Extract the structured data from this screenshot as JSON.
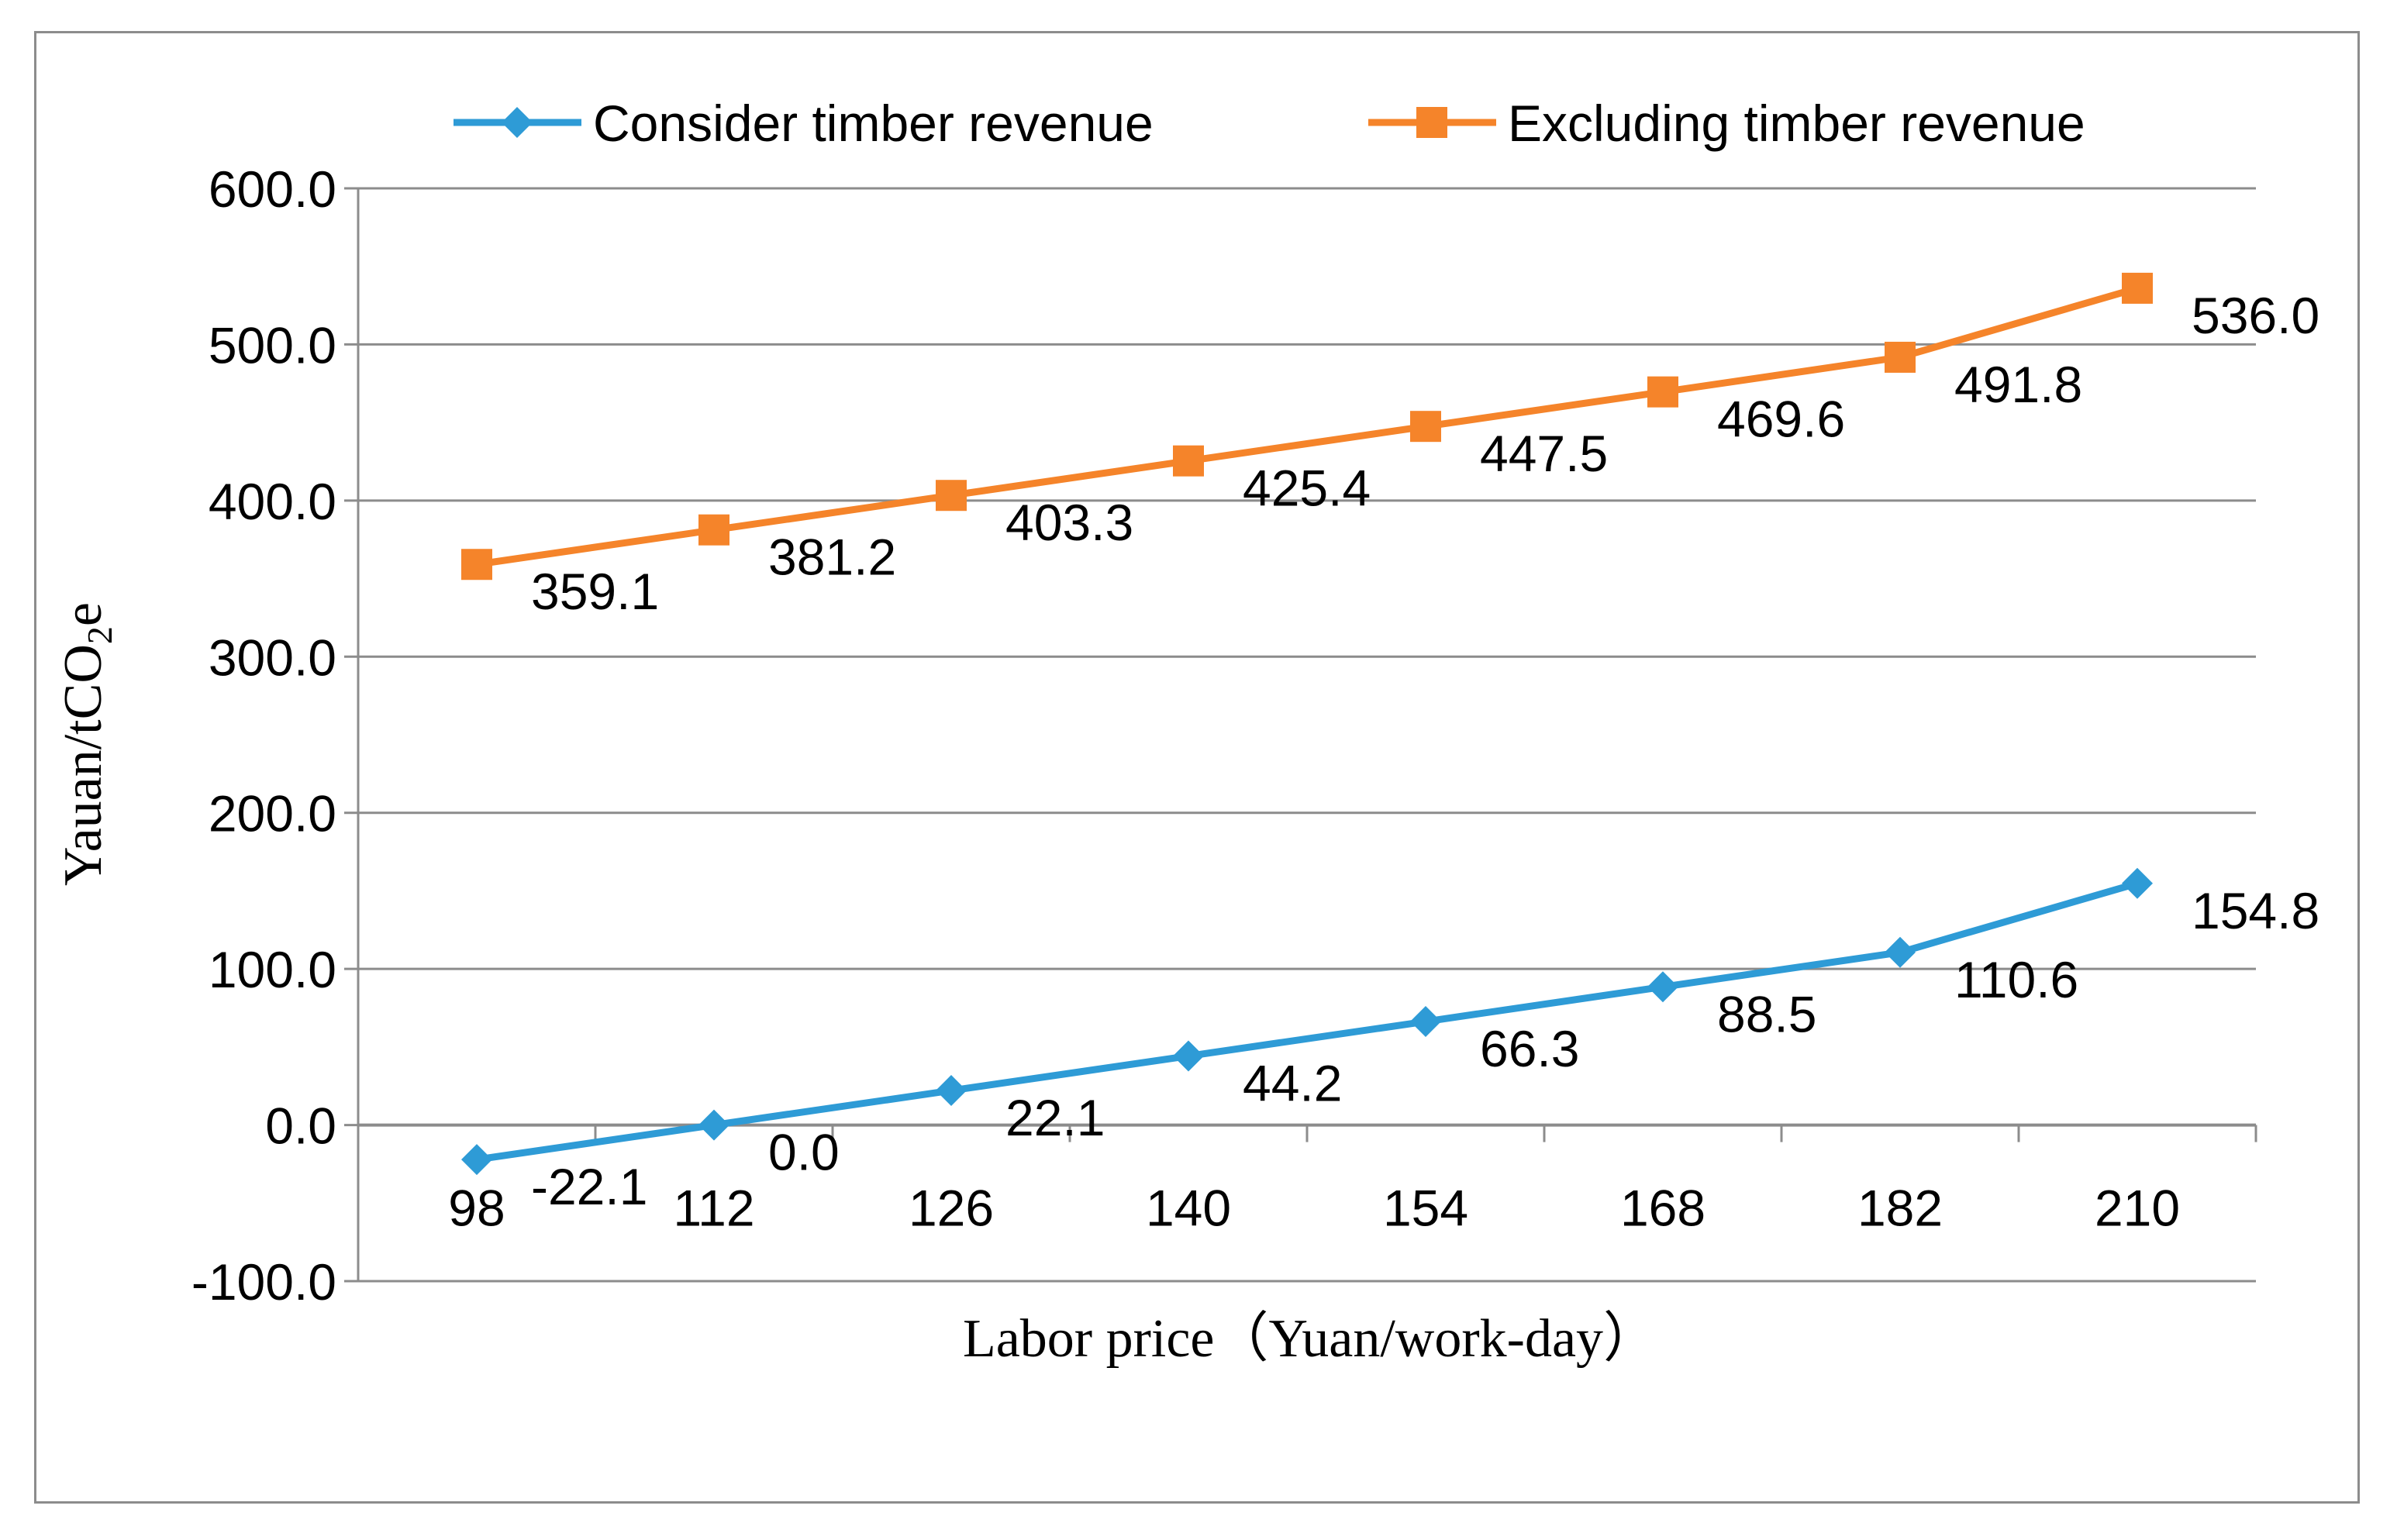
{
  "chart_data": {
    "type": "line",
    "title": "",
    "xlabel": "Labor price（Yuan/work-day）",
    "ylabel_main": "Yauan/tCO",
    "ylabel_sub": "2",
    "ylabel_tail": "e",
    "categories": [
      "98",
      "112",
      "126",
      "140",
      "154",
      "168",
      "182",
      "210"
    ],
    "ylim": [
      -100,
      600
    ],
    "yticks": [
      -100,
      0,
      100,
      200,
      300,
      400,
      500,
      600
    ],
    "ytick_labels": [
      "-100.0",
      "0.0",
      "100.0",
      "200.0",
      "300.0",
      "400.0",
      "500.0",
      "600.0"
    ],
    "grid": true,
    "legend_position": "top",
    "series": [
      {
        "name": "Consider timber revenue",
        "marker": "diamond",
        "color": "#2e9bd6",
        "values": [
          -22.1,
          0.0,
          22.1,
          44.2,
          66.3,
          88.5,
          110.6,
          154.8
        ],
        "labels": [
          "-22.1",
          "0.0",
          "22.1",
          "44.2",
          "66.3",
          "88.5",
          "110.6",
          "154.8"
        ]
      },
      {
        "name": "Excluding timber revenue",
        "marker": "square",
        "color": "#f5842a",
        "values": [
          359.1,
          381.2,
          403.3,
          425.4,
          447.5,
          469.6,
          491.8,
          536.0
        ],
        "labels": [
          "359.1",
          "381.2",
          "403.3",
          "425.4",
          "447.5",
          "469.6",
          "491.8",
          "536.0"
        ]
      }
    ]
  }
}
